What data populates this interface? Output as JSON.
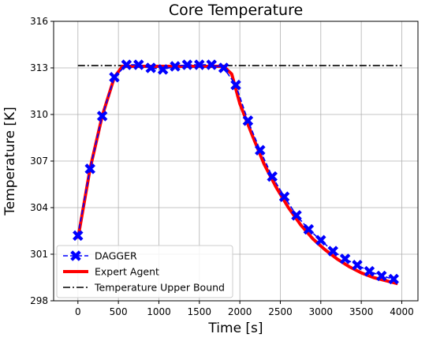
{
  "chart_data": {
    "type": "line",
    "title": "Core Temperature",
    "xlabel": "Time [s]",
    "ylabel": "Temperature [K]",
    "xlim": [
      -300,
      4200
    ],
    "ylim": [
      298,
      316
    ],
    "xticks": [
      0,
      500,
      1000,
      1500,
      2000,
      2500,
      3000,
      3500,
      4000
    ],
    "yticks": [
      298,
      301,
      304,
      307,
      310,
      313,
      316
    ],
    "grid": true,
    "legend_position": "lower-left",
    "series": [
      {
        "name": "DAGGER",
        "color": "#0000ff",
        "style": "dashed",
        "marker": "X",
        "x": [
          0,
          150,
          300,
          450,
          600,
          750,
          900,
          1050,
          1200,
          1350,
          1500,
          1650,
          1800,
          1950,
          2100,
          2250,
          2400,
          2550,
          2700,
          2850,
          3000,
          3150,
          3300,
          3450,
          3600,
          3750,
          3900
        ],
        "y": [
          302.2,
          306.5,
          309.9,
          312.4,
          313.2,
          313.2,
          313.0,
          312.9,
          313.1,
          313.2,
          313.2,
          313.2,
          313.0,
          311.9,
          309.6,
          307.7,
          306.0,
          304.7,
          303.5,
          302.6,
          301.9,
          301.2,
          300.7,
          300.3,
          299.9,
          299.6,
          299.4
        ]
      },
      {
        "name": "Expert Agent",
        "color": "#ff0000",
        "style": "solid",
        "x": [
          0,
          150,
          300,
          450,
          550,
          650,
          800,
          1000,
          1200,
          1400,
          1600,
          1800,
          1900,
          2000,
          2150,
          2300,
          2450,
          2600,
          2750,
          2900,
          3050,
          3200,
          3350,
          3500,
          3650,
          3800,
          3950
        ],
        "y": [
          302.0,
          306.5,
          309.9,
          312.4,
          313.1,
          313.1,
          313.1,
          313.1,
          313.1,
          313.1,
          313.1,
          313.1,
          312.6,
          310.7,
          308.7,
          306.8,
          305.3,
          304.0,
          302.9,
          302.0,
          301.3,
          300.7,
          300.2,
          299.8,
          299.5,
          299.3,
          299.1
        ]
      },
      {
        "name": "Temperature Upper Bound",
        "color": "#000000",
        "style": "dashdot",
        "x": [
          0,
          4000
        ],
        "y": [
          313.15,
          313.15
        ]
      }
    ]
  }
}
